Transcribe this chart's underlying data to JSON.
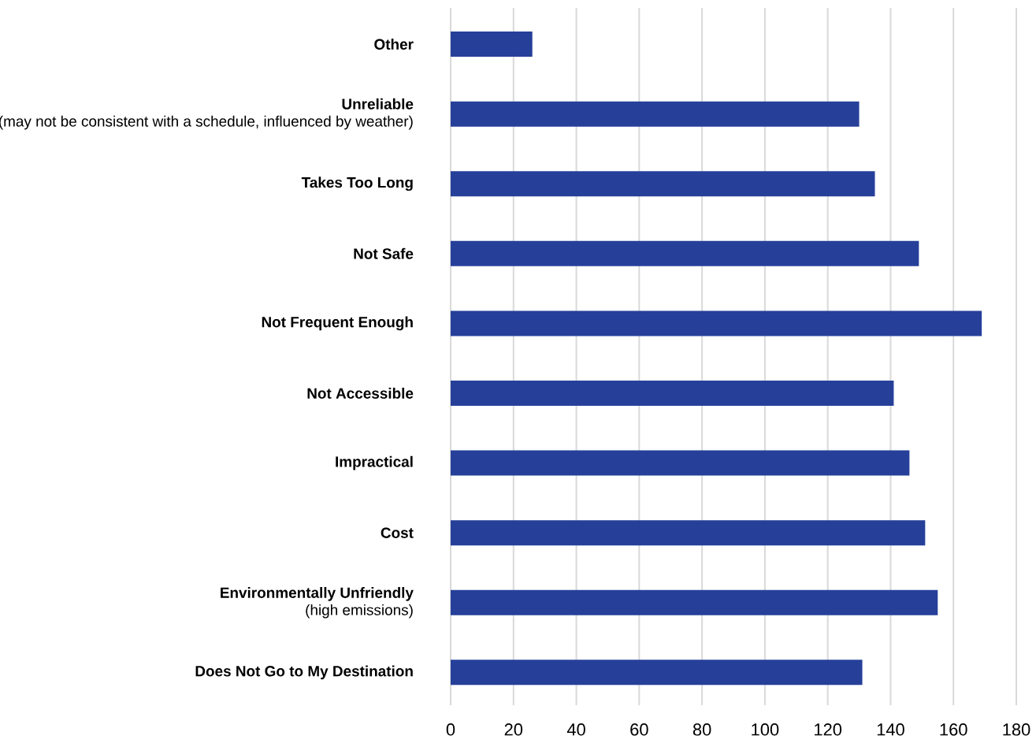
{
  "chart_data": {
    "type": "bar",
    "orientation": "horizontal",
    "categories": [
      "**Other**",
      "**Unreliable**\n(may not be consistent with a schedule, influenced by weather)",
      "**Takes Too Long**",
      "**Not Safe**",
      "**Not Frequent Enough**",
      "**Not Accessible**",
      "**Impractical**",
      "**Cost**",
      "**Environmentally Unfriendly**\n(high emissions)",
      "**Does Not Go to My Destination**"
    ],
    "values": [
      26,
      130,
      135,
      149,
      169,
      141,
      146,
      151,
      155,
      131
    ],
    "color": "#26409a",
    "xlim": [
      0,
      180
    ],
    "xticks": [
      0,
      20,
      40,
      60,
      80,
      100,
      120,
      140,
      160,
      180
    ],
    "grid": "x"
  }
}
